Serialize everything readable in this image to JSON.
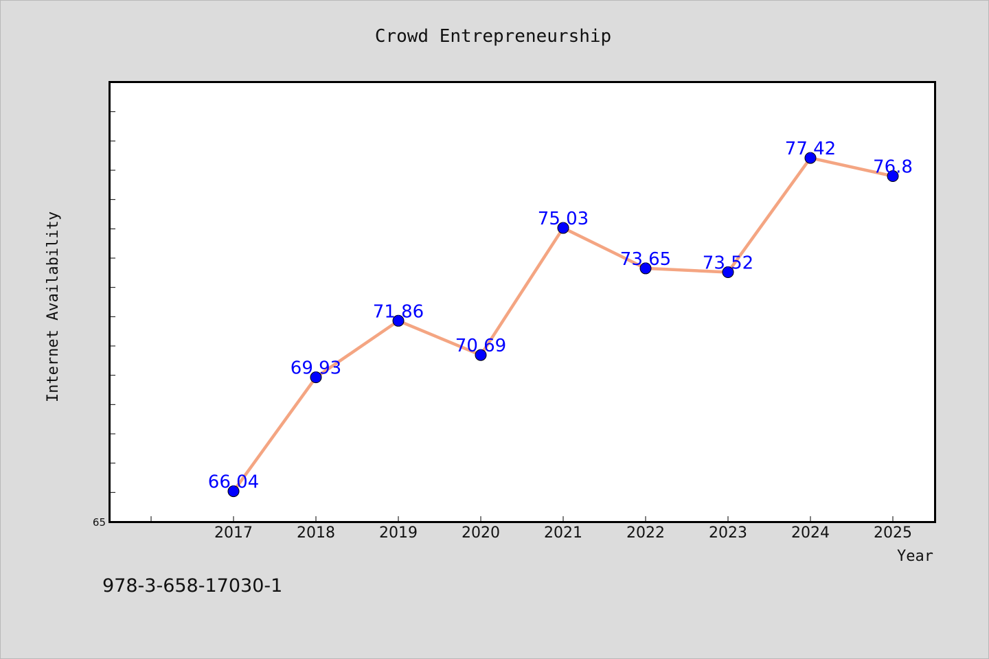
{
  "chart_data": {
    "type": "line",
    "title": "Crowd Entrepreneurship",
    "xlabel": "Year",
    "ylabel": "Internet Availability",
    "categories": [
      "2017",
      "2018",
      "2019",
      "2020",
      "2021",
      "2022",
      "2023",
      "2024",
      "2025"
    ],
    "series": [
      {
        "values": [
          66.04,
          69.93,
          71.86,
          70.69,
          75.03,
          73.65,
          73.52,
          77.42,
          76.8
        ],
        "labels": [
          "66.04",
          "69.93",
          "71.86",
          "70.69",
          "75.03",
          "73.65",
          "73.52",
          "77.42",
          "76.8"
        ],
        "line_color": "#f4a582",
        "marker_color": "#0000ff"
      }
    ],
    "ylim": [
      65,
      80
    ],
    "y_tick_labels": [
      "65"
    ],
    "grid": false,
    "legend": "none"
  },
  "footer": {
    "code": "978-3-658-17030-1"
  }
}
